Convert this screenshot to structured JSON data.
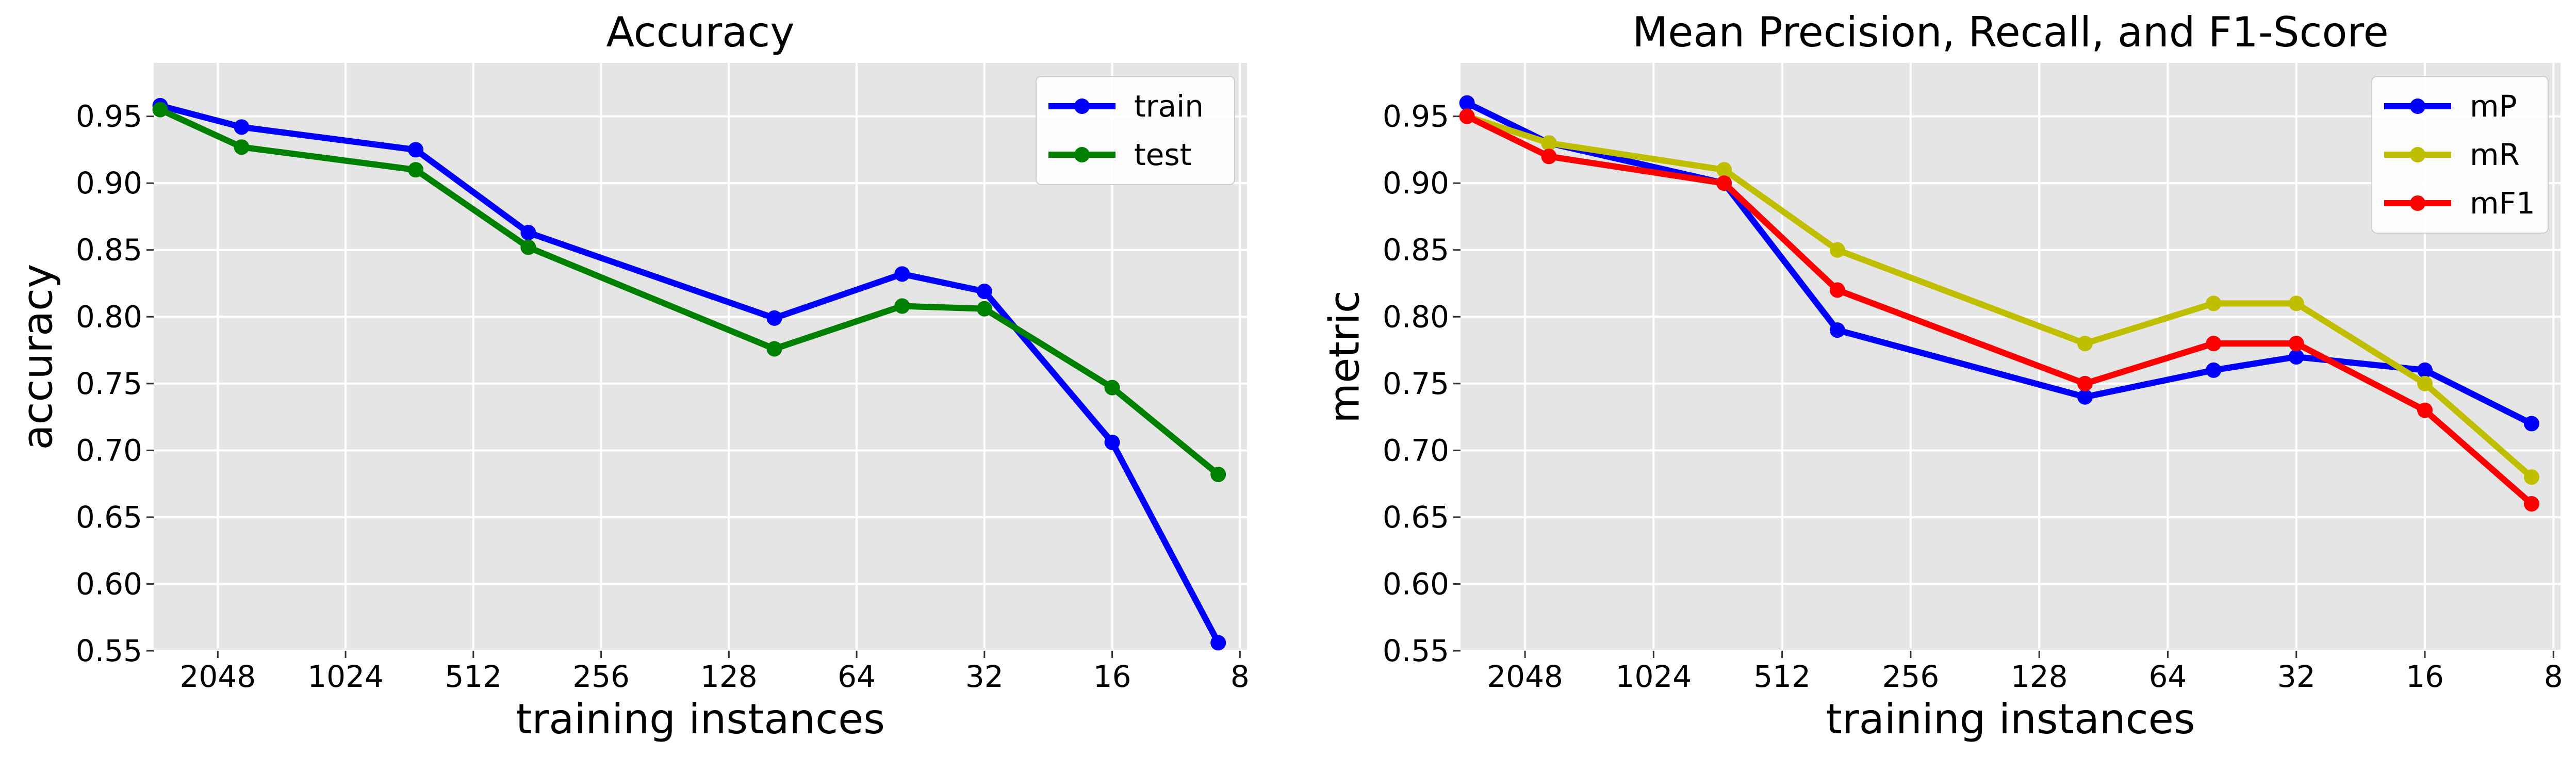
{
  "chart_data": [
    {
      "type": "line",
      "title": "Accuracy",
      "xlabel": "training instances",
      "ylabel": "accuracy",
      "x_scale": "log2",
      "x_reversed": true,
      "xlim": [
        2900,
        7.7
      ],
      "ylim": [
        0.55,
        0.99
      ],
      "xticks": [
        2048,
        1024,
        512,
        256,
        128,
        64,
        32,
        16,
        8
      ],
      "xtick_labels": [
        "2048",
        "1024",
        "512",
        "256",
        "128",
        "64",
        "32",
        "16",
        "8"
      ],
      "yticks": [
        0.55,
        0.6,
        0.65,
        0.7,
        0.75,
        0.8,
        0.85,
        0.9,
        0.95
      ],
      "ytick_labels": [
        "0.55",
        "0.60",
        "0.65",
        "0.70",
        "0.75",
        "0.80",
        "0.85",
        "0.90",
        "0.95"
      ],
      "grid": true,
      "legend_position": "top-right",
      "x": [
        2800,
        1800,
        700,
        380,
        100,
        50,
        32,
        16,
        9
      ],
      "series": [
        {
          "name": "train",
          "color": "#0000ff",
          "values": [
            0.958,
            0.942,
            0.925,
            0.863,
            0.799,
            0.832,
            0.819,
            0.706,
            0.556
          ]
        },
        {
          "name": "test",
          "color": "#008000",
          "values": [
            0.955,
            0.927,
            0.91,
            0.852,
            0.776,
            0.808,
            0.806,
            0.747,
            0.682
          ]
        }
      ]
    },
    {
      "type": "line",
      "title": "Mean Precision, Recall, and F1-Score",
      "xlabel": "training instances",
      "ylabel": "metric",
      "x_scale": "log2",
      "x_reversed": true,
      "xlim": [
        2900,
        7.7
      ],
      "ylim": [
        0.55,
        0.99
      ],
      "xticks": [
        2048,
        1024,
        512,
        256,
        128,
        64,
        32,
        16,
        8
      ],
      "xtick_labels": [
        "2048",
        "1024",
        "512",
        "256",
        "128",
        "64",
        "32",
        "16",
        "8"
      ],
      "yticks": [
        0.55,
        0.6,
        0.65,
        0.7,
        0.75,
        0.8,
        0.85,
        0.9,
        0.95
      ],
      "ytick_labels": [
        "0.55",
        "0.60",
        "0.65",
        "0.70",
        "0.75",
        "0.80",
        "0.85",
        "0.90",
        "0.95"
      ],
      "grid": true,
      "legend_position": "top-right",
      "x": [
        2800,
        1800,
        700,
        380,
        100,
        50,
        32,
        16,
        9
      ],
      "series": [
        {
          "name": "mP",
          "color": "#0000ff",
          "values": [
            0.96,
            0.93,
            0.9,
            0.79,
            0.74,
            0.76,
            0.77,
            0.76,
            0.72
          ]
        },
        {
          "name": "mR",
          "color": "#bfbf00",
          "values": [
            0.95,
            0.93,
            0.91,
            0.85,
            0.78,
            0.81,
            0.81,
            0.75,
            0.68
          ]
        },
        {
          "name": "mF1",
          "color": "#ff0000",
          "values": [
            0.95,
            0.92,
            0.9,
            0.82,
            0.75,
            0.78,
            0.78,
            0.73,
            0.66
          ]
        }
      ]
    }
  ]
}
